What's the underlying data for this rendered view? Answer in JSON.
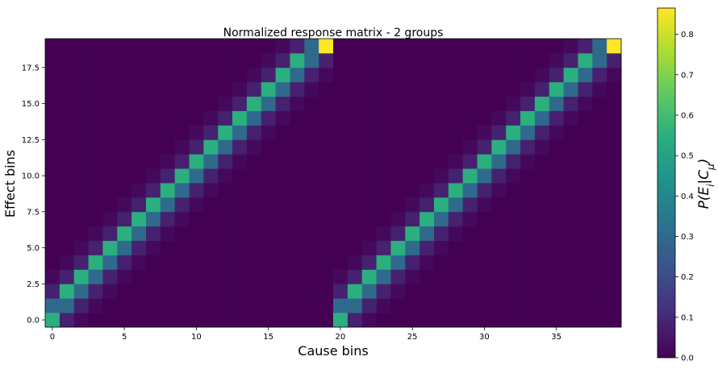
{
  "chart_data": {
    "type": "heatmap",
    "title": "Normalized response matrix - 2 groups",
    "xlabel": "Cause bins",
    "ylabel": "Effect bins",
    "colorbar_label": "P(E_i|C_μ)",
    "colorbar_label_parts": {
      "base": "P(E",
      "sub1": "i",
      "mid": "|C",
      "sub2": "μ",
      "end": ")"
    },
    "colormap": "viridis",
    "x_bins": 40,
    "y_bins": 20,
    "xlim": [
      -0.5,
      39.5
    ],
    "ylim": [
      -0.5,
      19.5
    ],
    "clim": [
      0.0,
      0.865
    ],
    "x_ticks": [
      0,
      5,
      10,
      15,
      20,
      25,
      30,
      35
    ],
    "x_tick_labels": [
      "0",
      "5",
      "10",
      "15",
      "20",
      "25",
      "30",
      "35"
    ],
    "y_ticks": [
      0,
      2.5,
      5,
      7.5,
      10,
      12.5,
      15,
      17.5
    ],
    "y_tick_labels": [
      "0.0",
      "2.5",
      "5.0",
      "7.5",
      "10.0",
      "12.5",
      "15.0",
      "17.5"
    ],
    "cbar_ticks": [
      0.0,
      0.1,
      0.2,
      0.3,
      0.4,
      0.5,
      0.6,
      0.7,
      0.8
    ],
    "cbar_tick_labels": [
      "0.0",
      "0.1",
      "0.2",
      "0.3",
      "0.4",
      "0.5",
      "0.6",
      "0.7",
      "0.8"
    ],
    "groups": 2,
    "bins_per_group": 20,
    "kernel": [
      {
        "offset": -2,
        "value": 0.02
      },
      {
        "offset": -1,
        "value": 0.08
      },
      {
        "offset": 0,
        "value": 0.3
      },
      {
        "offset": 1,
        "value": 0.55
      },
      {
        "offset": 2,
        "value": 0.08
      },
      {
        "offset": 3,
        "value": 0.02
      }
    ],
    "edge_cells": [
      {
        "x": 0,
        "y": 0,
        "value": 0.55
      },
      {
        "x": 1,
        "y": 0,
        "value": 0.08
      },
      {
        "x": 0,
        "y": 1,
        "value": 0.3
      },
      {
        "x": 20,
        "y": 0,
        "value": 0.55
      },
      {
        "x": 21,
        "y": 0,
        "value": 0.08
      },
      {
        "x": 20,
        "y": 1,
        "value": 0.3
      },
      {
        "x": 19,
        "y": 19,
        "value": 0.865
      },
      {
        "x": 18,
        "y": 19,
        "value": 0.3
      },
      {
        "x": 19,
        "y": 18,
        "value": 0.08
      },
      {
        "x": 39,
        "y": 19,
        "value": 0.865
      },
      {
        "x": 38,
        "y": 19,
        "value": 0.3
      },
      {
        "x": 39,
        "y": 18,
        "value": 0.08
      }
    ]
  }
}
